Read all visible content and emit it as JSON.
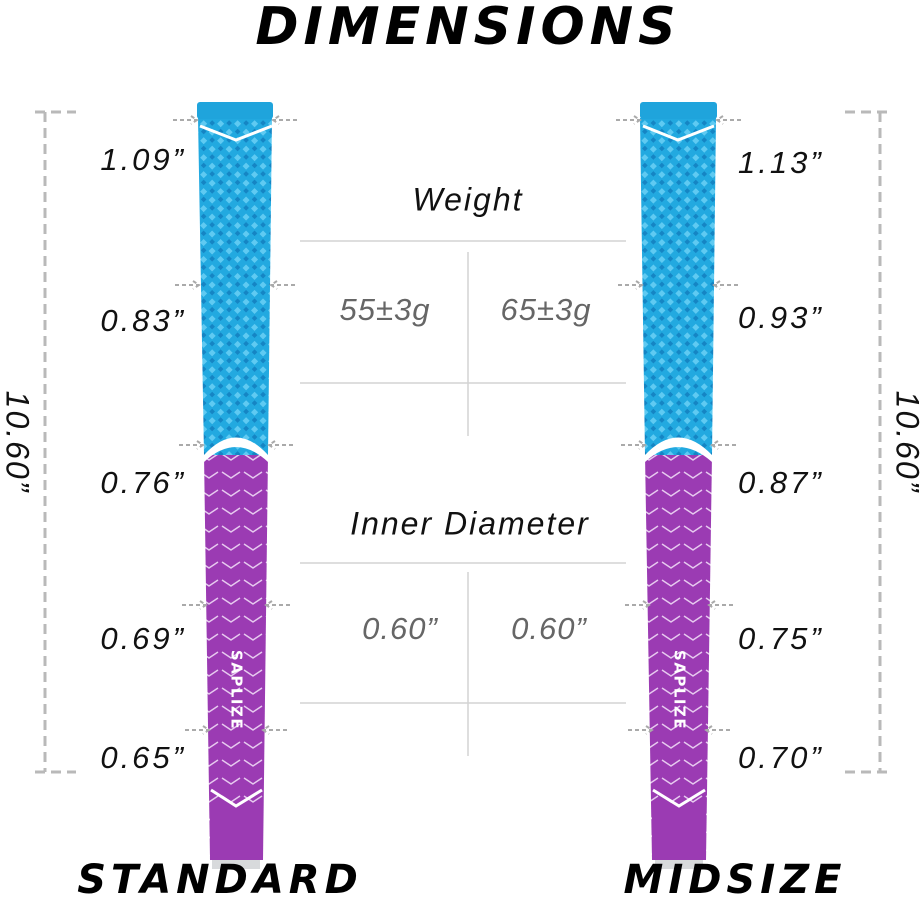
{
  "title": "DIMENSIONS",
  "standard": {
    "label": "STANDARD",
    "length": "10.60”",
    "diameters": [
      "1.09”",
      "0.83”",
      "0.76”",
      "0.69”",
      "0.65”"
    ]
  },
  "midsize": {
    "label": "MIDSIZE",
    "length": "10.60”",
    "diameters": [
      "1.13”",
      "0.93”",
      "0.87”",
      "0.75”",
      "0.70”"
    ]
  },
  "weight": {
    "label": "Weight",
    "values": [
      "55±3g",
      "65±3g"
    ]
  },
  "inner_diameter": {
    "label": "Inner Diameter",
    "values": [
      "0.60”",
      "0.60”"
    ]
  },
  "brand": "SAPLIZE"
}
